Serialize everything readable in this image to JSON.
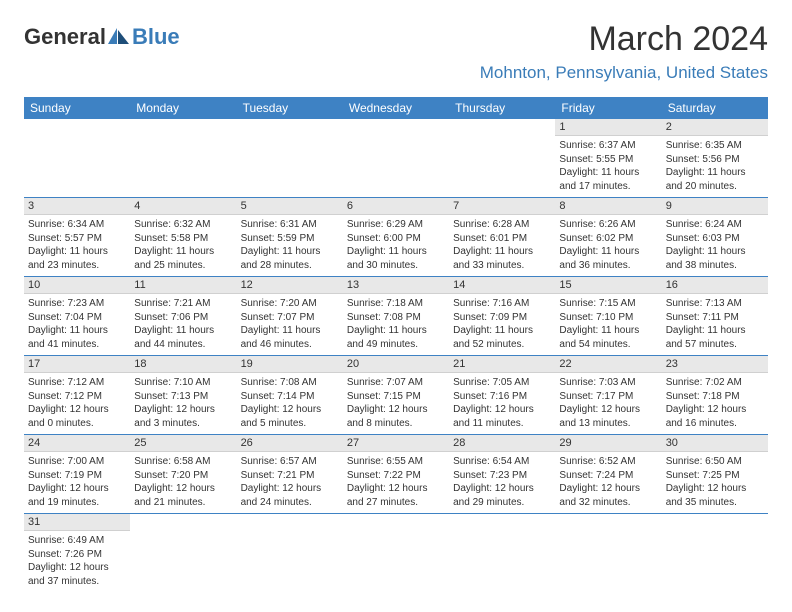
{
  "logo": {
    "part1": "General",
    "part2": "Blue"
  },
  "title": "March 2024",
  "location": "Mohnton, Pennsylvania, United States",
  "colors": {
    "accent": "#3e82c4",
    "logo_blue": "#3a7cb8",
    "daynum_bg": "#e8e8e8"
  },
  "weekdays": [
    "Sunday",
    "Monday",
    "Tuesday",
    "Wednesday",
    "Thursday",
    "Friday",
    "Saturday"
  ],
  "weeks": [
    [
      null,
      null,
      null,
      null,
      null,
      {
        "n": "1",
        "sr": "6:37 AM",
        "ss": "5:55 PM",
        "dl": "11 hours and 17 minutes."
      },
      {
        "n": "2",
        "sr": "6:35 AM",
        "ss": "5:56 PM",
        "dl": "11 hours and 20 minutes."
      }
    ],
    [
      {
        "n": "3",
        "sr": "6:34 AM",
        "ss": "5:57 PM",
        "dl": "11 hours and 23 minutes."
      },
      {
        "n": "4",
        "sr": "6:32 AM",
        "ss": "5:58 PM",
        "dl": "11 hours and 25 minutes."
      },
      {
        "n": "5",
        "sr": "6:31 AM",
        "ss": "5:59 PM",
        "dl": "11 hours and 28 minutes."
      },
      {
        "n": "6",
        "sr": "6:29 AM",
        "ss": "6:00 PM",
        "dl": "11 hours and 30 minutes."
      },
      {
        "n": "7",
        "sr": "6:28 AM",
        "ss": "6:01 PM",
        "dl": "11 hours and 33 minutes."
      },
      {
        "n": "8",
        "sr": "6:26 AM",
        "ss": "6:02 PM",
        "dl": "11 hours and 36 minutes."
      },
      {
        "n": "9",
        "sr": "6:24 AM",
        "ss": "6:03 PM",
        "dl": "11 hours and 38 minutes."
      }
    ],
    [
      {
        "n": "10",
        "sr": "7:23 AM",
        "ss": "7:04 PM",
        "dl": "11 hours and 41 minutes."
      },
      {
        "n": "11",
        "sr": "7:21 AM",
        "ss": "7:06 PM",
        "dl": "11 hours and 44 minutes."
      },
      {
        "n": "12",
        "sr": "7:20 AM",
        "ss": "7:07 PM",
        "dl": "11 hours and 46 minutes."
      },
      {
        "n": "13",
        "sr": "7:18 AM",
        "ss": "7:08 PM",
        "dl": "11 hours and 49 minutes."
      },
      {
        "n": "14",
        "sr": "7:16 AM",
        "ss": "7:09 PM",
        "dl": "11 hours and 52 minutes."
      },
      {
        "n": "15",
        "sr": "7:15 AM",
        "ss": "7:10 PM",
        "dl": "11 hours and 54 minutes."
      },
      {
        "n": "16",
        "sr": "7:13 AM",
        "ss": "7:11 PM",
        "dl": "11 hours and 57 minutes."
      }
    ],
    [
      {
        "n": "17",
        "sr": "7:12 AM",
        "ss": "7:12 PM",
        "dl": "12 hours and 0 minutes."
      },
      {
        "n": "18",
        "sr": "7:10 AM",
        "ss": "7:13 PM",
        "dl": "12 hours and 3 minutes."
      },
      {
        "n": "19",
        "sr": "7:08 AM",
        "ss": "7:14 PM",
        "dl": "12 hours and 5 minutes."
      },
      {
        "n": "20",
        "sr": "7:07 AM",
        "ss": "7:15 PM",
        "dl": "12 hours and 8 minutes."
      },
      {
        "n": "21",
        "sr": "7:05 AM",
        "ss": "7:16 PM",
        "dl": "12 hours and 11 minutes."
      },
      {
        "n": "22",
        "sr": "7:03 AM",
        "ss": "7:17 PM",
        "dl": "12 hours and 13 minutes."
      },
      {
        "n": "23",
        "sr": "7:02 AM",
        "ss": "7:18 PM",
        "dl": "12 hours and 16 minutes."
      }
    ],
    [
      {
        "n": "24",
        "sr": "7:00 AM",
        "ss": "7:19 PM",
        "dl": "12 hours and 19 minutes."
      },
      {
        "n": "25",
        "sr": "6:58 AM",
        "ss": "7:20 PM",
        "dl": "12 hours and 21 minutes."
      },
      {
        "n": "26",
        "sr": "6:57 AM",
        "ss": "7:21 PM",
        "dl": "12 hours and 24 minutes."
      },
      {
        "n": "27",
        "sr": "6:55 AM",
        "ss": "7:22 PM",
        "dl": "12 hours and 27 minutes."
      },
      {
        "n": "28",
        "sr": "6:54 AM",
        "ss": "7:23 PM",
        "dl": "12 hours and 29 minutes."
      },
      {
        "n": "29",
        "sr": "6:52 AM",
        "ss": "7:24 PM",
        "dl": "12 hours and 32 minutes."
      },
      {
        "n": "30",
        "sr": "6:50 AM",
        "ss": "7:25 PM",
        "dl": "12 hours and 35 minutes."
      }
    ],
    [
      {
        "n": "31",
        "sr": "6:49 AM",
        "ss": "7:26 PM",
        "dl": "12 hours and 37 minutes."
      },
      null,
      null,
      null,
      null,
      null,
      null
    ]
  ],
  "labels": {
    "sunrise": "Sunrise: ",
    "sunset": "Sunset: ",
    "daylight": "Daylight: "
  }
}
